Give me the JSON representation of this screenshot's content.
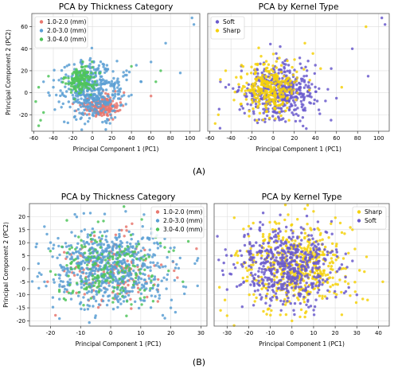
{
  "figure": {
    "panel_labels": [
      "(A)",
      "(B)"
    ]
  },
  "colors": {
    "thin": "#e8776f",
    "medium": "#5a9fd4",
    "thick": "#4fc45a",
    "soft": "#6a5acd",
    "sharp": "#f5d10a",
    "grid": "#dddddd",
    "frame": "#555555"
  },
  "chart_data": [
    {
      "id": "A-thickness",
      "type": "scatter",
      "title": "PCA by Thickness Category",
      "xlabel": "Principal Component 1 (PC1)",
      "ylabel": "Principal Component 2 (PC2)",
      "xlim": [
        -62,
        110
      ],
      "ylim": [
        -35,
        72
      ],
      "xticks": [
        -60,
        -40,
        -20,
        0,
        20,
        40,
        60,
        80,
        100
      ],
      "yticks": [
        -20,
        0,
        20,
        40,
        60
      ],
      "grid": true,
      "legend": "upper-left",
      "series": [
        {
          "name": "1.0-2.0 (mm)",
          "color_key": "thin",
          "center": [
            8,
            -12
          ],
          "spread": [
            9,
            5
          ],
          "count": 180,
          "points": [
            [
              -2,
              -15
            ],
            [
              4,
              -18
            ],
            [
              10,
              -14
            ],
            [
              16,
              -16
            ],
            [
              6,
              -10
            ],
            [
              12,
              -20
            ],
            [
              0,
              -12
            ],
            [
              20,
              -13
            ],
            [
              60,
              -3
            ],
            [
              -20,
              -10
            ]
          ]
        },
        {
          "name": "2.0-3.0 (mm)",
          "color_key": "medium",
          "center": [
            0,
            2
          ],
          "spread": [
            16,
            13
          ],
          "count": 420,
          "points": [
            [
              -50,
              10
            ],
            [
              -40,
              5
            ],
            [
              -30,
              -10
            ],
            [
              35,
              20
            ],
            [
              45,
              25
            ],
            [
              60,
              28
            ],
            [
              75,
              45
            ],
            [
              102,
              68
            ],
            [
              104,
              62
            ],
            [
              90,
              18
            ],
            [
              50,
              10
            ],
            [
              40,
              -2
            ],
            [
              -45,
              0
            ]
          ]
        },
        {
          "name": "3.0-4.0 (mm)",
          "color_key": "thick",
          "center": [
            -12,
            12
          ],
          "spread": [
            7,
            6
          ],
          "count": 150,
          "points": [
            [
              -55,
              -30
            ],
            [
              -53,
              -25
            ],
            [
              -50,
              -18
            ],
            [
              -58,
              -8
            ],
            [
              -55,
              5
            ],
            [
              -45,
              15
            ],
            [
              -10,
              20
            ],
            [
              -5,
              8
            ],
            [
              -20,
              10
            ],
            [
              40,
              24
            ],
            [
              65,
              10
            ],
            [
              70,
              20
            ]
          ]
        }
      ]
    },
    {
      "id": "A-kernel",
      "type": "scatter",
      "title": "PCA by Kernel Type",
      "xlabel": "Principal Component 1 (PC1)",
      "ylabel": "",
      "xlim": [
        -62,
        110
      ],
      "ylim": [
        -35,
        72
      ],
      "xticks": [
        -60,
        -40,
        -20,
        0,
        20,
        40,
        60,
        80,
        100
      ],
      "yticks": [],
      "grid": true,
      "legend": "upper-left",
      "series": [
        {
          "name": "Soft",
          "color_key": "soft",
          "center": [
            5,
            0
          ],
          "spread": [
            17,
            12
          ],
          "count": 480,
          "points": [
            [
              -50,
              10
            ],
            [
              -30,
              -12
            ],
            [
              40,
              25
            ],
            [
              55,
              22
            ],
            [
              75,
              40
            ],
            [
              103,
              68
            ],
            [
              106,
              62
            ],
            [
              90,
              15
            ],
            [
              60,
              -5
            ],
            [
              -45,
              5
            ]
          ]
        },
        {
          "name": "Sharp",
          "color_key": "sharp",
          "center": [
            -5,
            5
          ],
          "spread": [
            13,
            11
          ],
          "count": 300,
          "points": [
            [
              -55,
              -28
            ],
            [
              -52,
              -20
            ],
            [
              -50,
              12
            ],
            [
              -45,
              20
            ],
            [
              30,
              45
            ],
            [
              45,
              22
            ],
            [
              65,
              5
            ],
            [
              88,
              60
            ],
            [
              15,
              -25
            ],
            [
              -30,
              25
            ]
          ]
        }
      ]
    },
    {
      "id": "B-thickness",
      "type": "scatter",
      "title": "PCA by Thickness Category",
      "xlabel": "Principal Component 1 (PC1)",
      "ylabel": "Principal Component 2 (PC2)",
      "xlim": [
        -27,
        32
      ],
      "ylim": [
        -22,
        25
      ],
      "xticks": [
        -20,
        -10,
        0,
        10,
        20,
        30
      ],
      "yticks": [
        -20,
        -15,
        -10,
        -5,
        0,
        5,
        10,
        15,
        20
      ],
      "grid": true,
      "legend": "upper-right",
      "series": [
        {
          "name": "1.0-2.0 (mm)",
          "color_key": "thin",
          "center": [
            1,
            0
          ],
          "spread": [
            9,
            7
          ],
          "count": 150,
          "points": []
        },
        {
          "name": "2.0-3.0 (mm)",
          "color_key": "medium",
          "center": [
            0,
            0
          ],
          "spread": [
            10,
            7.5
          ],
          "count": 650,
          "points": [
            [
              -24,
              2
            ],
            [
              -22,
              -5
            ],
            [
              28,
              2
            ],
            [
              29,
              4
            ],
            [
              -20,
              10
            ],
            [
              20,
              -15
            ],
            [
              5,
              22
            ],
            [
              -5,
              -18
            ],
            [
              25,
              -7
            ],
            [
              -2,
              21
            ]
          ]
        },
        {
          "name": "3.0-4.0 (mm)",
          "color_key": "thick",
          "center": [
            0,
            0
          ],
          "spread": [
            9,
            7
          ],
          "count": 200,
          "points": [
            [
              -20,
              -1
            ],
            [
              24,
              -5
            ],
            [
              15,
              12
            ],
            [
              -15,
              -12
            ]
          ]
        }
      ]
    },
    {
      "id": "B-kernel",
      "type": "scatter",
      "title": "PCA by Kernel Type",
      "xlabel": "Principal Component 1 (PC1)",
      "ylabel": "",
      "xlim": [
        -36,
        45
      ],
      "ylim": [
        -22,
        25
      ],
      "xticks": [
        -30,
        -20,
        -10,
        0,
        10,
        20,
        30,
        40
      ],
      "yticks": [],
      "grid": true,
      "legend": "upper-right",
      "series": [
        {
          "name": "Sharp",
          "color_key": "sharp",
          "center": [
            2,
            1
          ],
          "spread": [
            13,
            8
          ],
          "count": 500,
          "points": [
            [
              -33,
              -16
            ],
            [
              -31,
              -12
            ],
            [
              -30,
              -18
            ],
            [
              42,
              -5
            ],
            [
              35,
              -12
            ],
            [
              6,
              23
            ],
            [
              10,
              22
            ],
            [
              -25,
              5
            ],
            [
              28,
              15
            ],
            [
              0,
              -20
            ]
          ]
        },
        {
          "name": "Soft",
          "color_key": "soft",
          "center": [
            -2,
            1
          ],
          "spread": [
            11,
            7
          ],
          "count": 550,
          "points": [
            [
              -30,
              -8
            ],
            [
              -28,
              5
            ],
            [
              30,
              -10
            ],
            [
              28,
              3
            ],
            [
              -15,
              15
            ],
            [
              12,
              18
            ],
            [
              -5,
              -16
            ]
          ]
        }
      ]
    }
  ]
}
